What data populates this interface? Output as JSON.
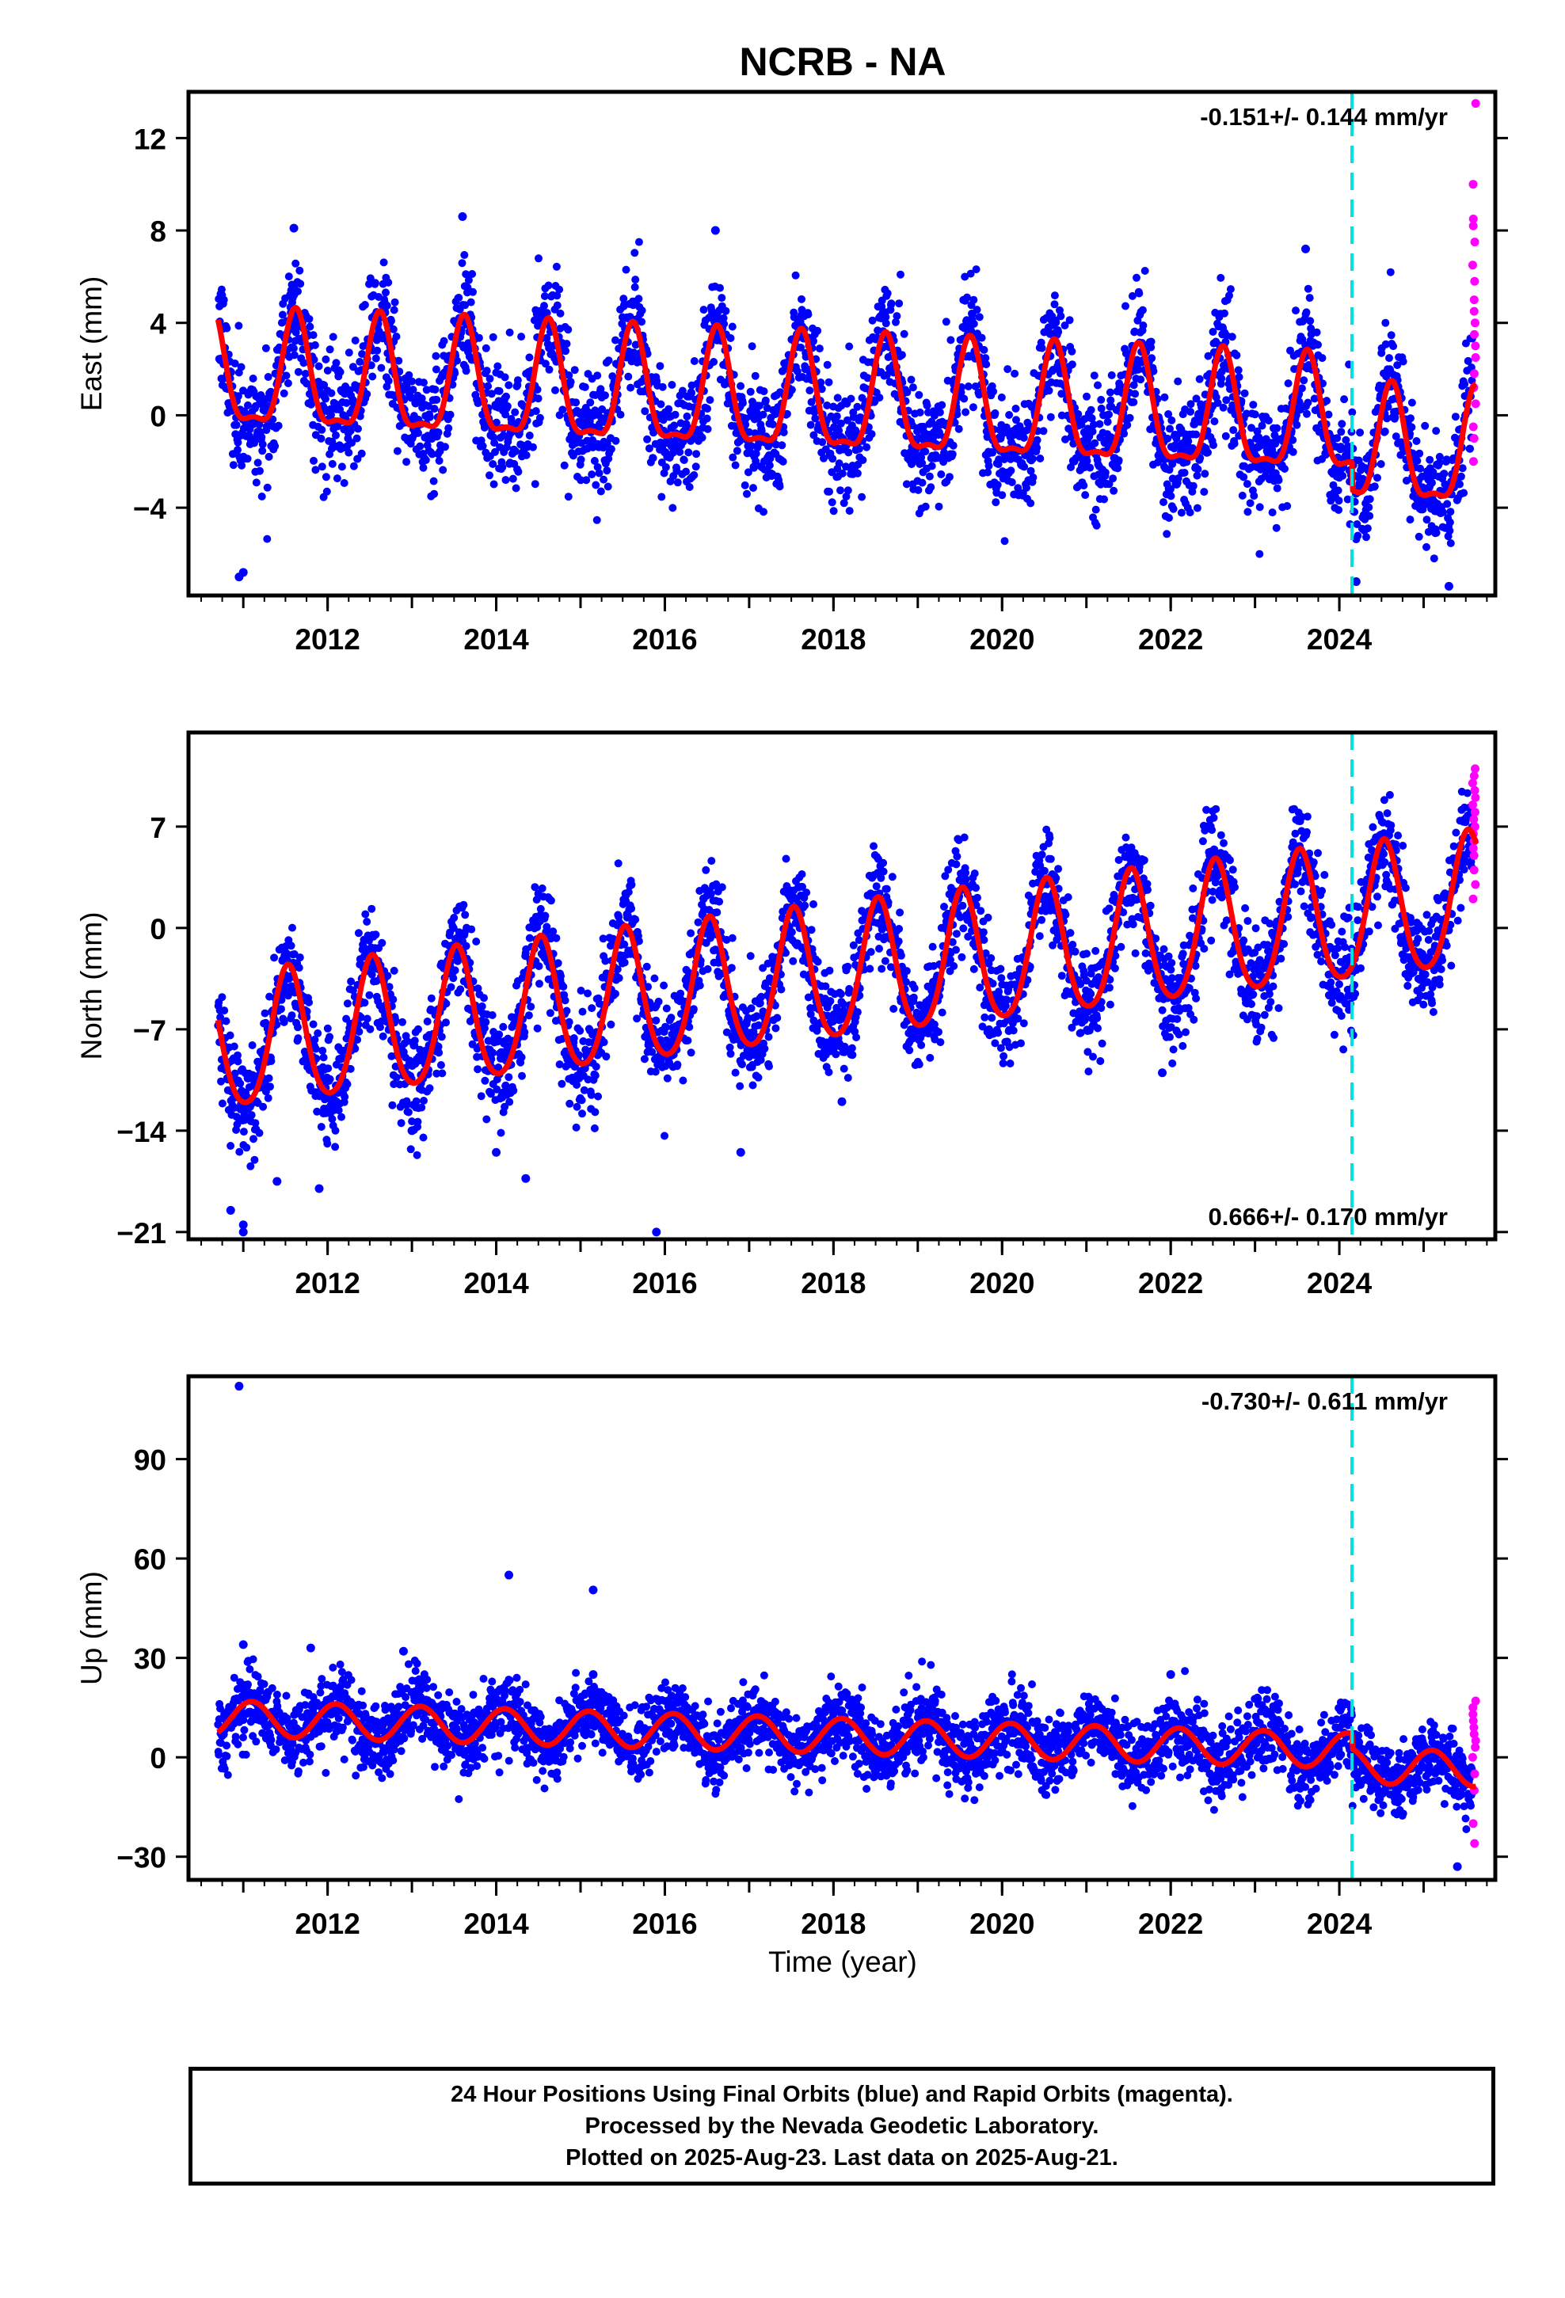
{
  "chart_data": {
    "type": "scatter",
    "title": "NCRB - NA",
    "xlabel": "Time (year)",
    "x_ticks": [
      2012,
      2014,
      2016,
      2018,
      2020,
      2022,
      2024
    ],
    "xlim": [
      2010.35,
      2025.85
    ],
    "event_line_x": 2024.15,
    "colors": {
      "final": "#0000ff",
      "rapid": "#ff00ff",
      "model": "#ff0000",
      "event": "#00e0e0"
    },
    "panels": [
      {
        "name": "east",
        "ylabel": "East (mm)",
        "ylim": [
          -7.8,
          14
        ],
        "y_ticks": [
          12,
          8,
          4,
          0,
          -4
        ],
        "rate_label": "-0.151+/- 0.144 mm/yr",
        "rate_position": "top-right",
        "model": {
          "offset": 0.5,
          "trend": -0.151,
          "annual": 2.4,
          "peak_phase": 0.62,
          "semi": 0.8,
          "step_2024": -1.2,
          "noise": 1.3
        },
        "data_start": 2010.7,
        "outliers": [
          {
            "x": 2010.95,
            "y": -7.0
          },
          {
            "x": 2011.0,
            "y": -6.8
          },
          {
            "x": 2013.6,
            "y": 8.6
          },
          {
            "x": 2011.6,
            "y": 8.1
          },
          {
            "x": 2016.6,
            "y": 8.0
          },
          {
            "x": 2023.6,
            "y": 7.2
          },
          {
            "x": 2025.3,
            "y": -7.4
          },
          {
            "x": 2024.2,
            "y": -7.2
          }
        ],
        "rapid": [
          {
            "x": 2025.6,
            "y": 13.5
          },
          {
            "x": 2025.6,
            "y": 10.0
          },
          {
            "x": 2025.6,
            "y": 8.5
          },
          {
            "x": 2025.6,
            "y": 8.2
          },
          {
            "x": 2025.6,
            "y": 7.5
          },
          {
            "x": 2025.6,
            "y": 6.5
          },
          {
            "x": 2025.6,
            "y": 5.8
          },
          {
            "x": 2025.6,
            "y": 5.0
          },
          {
            "x": 2025.6,
            "y": 4.5
          },
          {
            "x": 2025.6,
            "y": 4.0
          },
          {
            "x": 2025.6,
            "y": 3.5
          },
          {
            "x": 2025.6,
            "y": 3.0
          },
          {
            "x": 2025.6,
            "y": 2.5
          },
          {
            "x": 2025.6,
            "y": 1.8
          },
          {
            "x": 2025.6,
            "y": 1.2
          },
          {
            "x": 2025.6,
            "y": 0.5
          },
          {
            "x": 2025.6,
            "y": -0.5
          },
          {
            "x": 2025.6,
            "y": -1.0
          },
          {
            "x": 2025.6,
            "y": -2.0
          }
        ]
      },
      {
        "name": "north",
        "ylabel": "North (mm)",
        "ylim": [
          -21.5,
          13.5
        ],
        "y_ticks": [
          7,
          0,
          -7,
          -14,
          -21
        ],
        "rate_label": "0.666+/- 0.170 mm/yr",
        "rate_position": "bottom-right",
        "model": {
          "offset": -3.4,
          "trend": 0.666,
          "annual": 4.6,
          "peak_phase": 0.53,
          "semi": 0.6,
          "step_2024": 0,
          "noise": 1.8
        },
        "data_start": 2010.7,
        "outliers": [
          {
            "x": 2010.85,
            "y": -19.5
          },
          {
            "x": 2011.0,
            "y": -20.5
          },
          {
            "x": 2011.0,
            "y": -21.0
          },
          {
            "x": 2011.4,
            "y": -17.5
          },
          {
            "x": 2011.9,
            "y": -18.0
          },
          {
            "x": 2014.0,
            "y": -15.5
          },
          {
            "x": 2014.35,
            "y": -17.3
          },
          {
            "x": 2015.9,
            "y": -21.0
          },
          {
            "x": 2016.9,
            "y": -15.5
          },
          {
            "x": 2021.9,
            "y": -10.0
          },
          {
            "x": 2018.1,
            "y": -12.0
          },
          {
            "x": 2012.0,
            "y": -12.5
          },
          {
            "x": 2013.0,
            "y": -14.0
          }
        ],
        "rapid": [
          {
            "x": 2025.6,
            "y": 11.0
          },
          {
            "x": 2025.6,
            "y": 10.5
          },
          {
            "x": 2025.6,
            "y": 10.0
          },
          {
            "x": 2025.6,
            "y": 9.5
          },
          {
            "x": 2025.6,
            "y": 9.0
          },
          {
            "x": 2025.6,
            "y": 8.5
          },
          {
            "x": 2025.6,
            "y": 8.0
          },
          {
            "x": 2025.6,
            "y": 7.5
          },
          {
            "x": 2025.6,
            "y": 7.0
          },
          {
            "x": 2025.6,
            "y": 6.5
          },
          {
            "x": 2025.6,
            "y": 6.0
          },
          {
            "x": 2025.6,
            "y": 5.5
          },
          {
            "x": 2025.6,
            "y": 5.0
          },
          {
            "x": 2025.6,
            "y": 4.0
          },
          {
            "x": 2025.6,
            "y": 3.0
          },
          {
            "x": 2025.6,
            "y": 2.0
          }
        ]
      },
      {
        "name": "up",
        "ylabel": "Up (mm)",
        "ylim": [
          -37,
          115
        ],
        "y_ticks": [
          90,
          60,
          30,
          0,
          -30
        ],
        "rate_label": "-0.730+/- 0.611 mm/yr",
        "rate_position": "top-right",
        "model": {
          "offset": 6.5,
          "trend": -0.73,
          "annual": 5.3,
          "peak_phase": 0.1,
          "semi": 0.0,
          "step_2024": -4.5,
          "noise": 5.5
        },
        "data_start": 2010.7,
        "outliers": [
          {
            "x": 2010.95,
            "y": 112
          },
          {
            "x": 2014.15,
            "y": 55
          },
          {
            "x": 2015.15,
            "y": 50.5
          },
          {
            "x": 2011.0,
            "y": 34
          },
          {
            "x": 2011.8,
            "y": 33
          },
          {
            "x": 2012.9,
            "y": 32
          },
          {
            "x": 2022.0,
            "y": 25
          },
          {
            "x": 2015.15,
            "y": 25
          },
          {
            "x": 2025.4,
            "y": -33
          }
        ],
        "rapid": [
          {
            "x": 2025.6,
            "y": 17
          },
          {
            "x": 2025.6,
            "y": 15
          },
          {
            "x": 2025.6,
            "y": 13
          },
          {
            "x": 2025.6,
            "y": 11
          },
          {
            "x": 2025.6,
            "y": 9
          },
          {
            "x": 2025.6,
            "y": 7
          },
          {
            "x": 2025.6,
            "y": 5
          },
          {
            "x": 2025.6,
            "y": 3
          },
          {
            "x": 2025.6,
            "y": 0
          },
          {
            "x": 2025.6,
            "y": -5
          },
          {
            "x": 2025.6,
            "y": -10
          },
          {
            "x": 2025.6,
            "y": -20
          },
          {
            "x": 2025.6,
            "y": -26
          }
        ]
      }
    ]
  },
  "caption": {
    "line1": "24 Hour Positions Using Final Orbits (blue) and Rapid Orbits (magenta).",
    "line2": "Processed by the Nevada Geodetic Laboratory.",
    "line3": "Plotted on 2025-Aug-23. Last data on 2025-Aug-21."
  }
}
